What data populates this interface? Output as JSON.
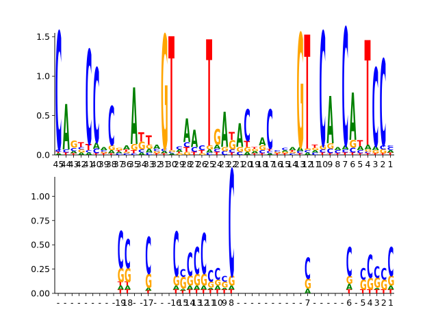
{
  "colors": {
    "A": "#008000",
    "C": "#0000ff",
    "G": "#ffa500",
    "T": "#ff0000"
  },
  "chart_data": [
    {
      "type": "sequence-logo",
      "title": "",
      "xlabel": "",
      "ylabel": "",
      "ylim": [
        0,
        1.55
      ],
      "yticks": [
        "0.0",
        "0.5",
        "1.0",
        "1.5"
      ],
      "ytick_values": [
        0,
        0.5,
        1.0,
        1.5
      ],
      "positions": [
        "45",
        "44",
        "43",
        "42",
        "41",
        "40",
        "39",
        "38",
        "37",
        "36",
        "35",
        "34",
        "33",
        "32",
        "31",
        "30",
        "29",
        "28",
        "27",
        "26",
        "25",
        "24",
        "23",
        "22",
        "21",
        "20",
        "19",
        "18",
        "17",
        "16",
        "15",
        "14",
        "13",
        "12",
        "11",
        "10",
        "9",
        "8",
        "7",
        "6",
        "5",
        "4",
        "3",
        "2",
        "1"
      ],
      "columns": [
        [
          [
            "A",
            0.02
          ],
          [
            "T",
            0.02
          ],
          [
            "C",
            0.03
          ],
          [
            "C",
            1.5
          ]
        ],
        [
          [
            "T",
            0.03
          ],
          [
            "C",
            0.04
          ],
          [
            "A",
            0.58
          ]
        ],
        [
          [
            "T",
            0.02
          ],
          [
            "A",
            0.03
          ],
          [
            "C",
            0.04
          ],
          [
            "G",
            0.09
          ]
        ],
        [
          [
            "A",
            0.03
          ],
          [
            "G",
            0.04
          ],
          [
            "C",
            0.03
          ],
          [
            "T",
            0.06
          ]
        ],
        [
          [
            "A",
            0.03
          ],
          [
            "C",
            0.03
          ],
          [
            "T",
            0.08
          ],
          [
            "C",
            1.2
          ]
        ],
        [
          [
            "T",
            0.02
          ],
          [
            "C",
            0.06
          ],
          [
            "A",
            0.08
          ],
          [
            "C",
            0.95
          ]
        ],
        [
          [
            "T",
            0.02
          ],
          [
            "G",
            0.02
          ],
          [
            "C",
            0.02
          ],
          [
            "A",
            0.04
          ]
        ],
        [
          [
            "T",
            0.02
          ],
          [
            "A",
            0.04
          ],
          [
            "G",
            0.06
          ],
          [
            "C",
            0.5
          ]
        ],
        [
          [
            "C",
            0.02
          ],
          [
            "A",
            0.02
          ],
          [
            "T",
            0.02
          ],
          [
            "G",
            0.03
          ]
        ],
        [
          [
            "C",
            0.02
          ],
          [
            "G",
            0.02
          ],
          [
            "T",
            0.03
          ],
          [
            "A",
            0.05
          ]
        ],
        [
          [
            "C",
            0.02
          ],
          [
            "T",
            0.04
          ],
          [
            "G",
            0.08
          ],
          [
            "A",
            0.72
          ]
        ],
        [
          [
            "A",
            0.03
          ],
          [
            "C",
            0.04
          ],
          [
            "G",
            0.1
          ],
          [
            "T",
            0.12
          ]
        ],
        [
          [
            "C",
            0.03
          ],
          [
            "A",
            0.05
          ],
          [
            "G",
            0.05
          ],
          [
            "T",
            0.12
          ]
        ],
        [
          [
            "T",
            0.02
          ],
          [
            "G",
            0.03
          ],
          [
            "C",
            0.03
          ],
          [
            "A",
            0.05
          ]
        ],
        [
          [
            "T",
            0.02
          ],
          [
            "A",
            0.03
          ],
          [
            "C",
            0.03
          ],
          [
            "G",
            1.45
          ]
        ],
        [
          [
            "A",
            0.02
          ],
          [
            "C",
            0.02
          ],
          [
            "G",
            0.02
          ],
          [
            "T",
            1.45
          ]
        ],
        [
          [
            "G",
            0.02
          ],
          [
            "T",
            0.02
          ],
          [
            "A",
            0.03
          ],
          [
            "C",
            0.04
          ]
        ],
        [
          [
            "G",
            0.04
          ],
          [
            "T",
            0.06
          ],
          [
            "C",
            0.06
          ],
          [
            "A",
            0.3
          ]
        ],
        [
          [
            "T",
            0.04
          ],
          [
            "C",
            0.06
          ],
          [
            "A",
            0.22
          ]
        ],
        [
          [
            "G",
            0.02
          ],
          [
            "T",
            0.04
          ],
          [
            "C",
            0.06
          ]
        ],
        [
          [
            "C",
            0.03
          ],
          [
            "A",
            0.04
          ],
          [
            "G",
            0.05
          ],
          [
            "T",
            1.35
          ]
        ],
        [
          [
            "T",
            0.04
          ],
          [
            "C",
            0.04
          ],
          [
            "A",
            0.05
          ],
          [
            "G",
            0.2
          ]
        ],
        [
          [
            "C",
            0.05
          ],
          [
            "G",
            0.05
          ],
          [
            "A",
            0.45
          ]
        ],
        [
          [
            "T",
            0.03
          ],
          [
            "C",
            0.04
          ],
          [
            "G",
            0.12
          ],
          [
            "T",
            0.1
          ]
        ],
        [
          [
            "C",
            0.04
          ],
          [
            "G",
            0.06
          ],
          [
            "A",
            0.3
          ]
        ],
        [
          [
            "A",
            0.04
          ],
          [
            "G",
            0.06
          ],
          [
            "T",
            0.08
          ],
          [
            "C",
            0.4
          ]
        ],
        [
          [
            "T",
            0.02
          ],
          [
            "A",
            0.03
          ],
          [
            "G",
            0.03
          ],
          [
            "T",
            0.02
          ]
        ],
        [
          [
            "T",
            0.02
          ],
          [
            "C",
            0.04
          ],
          [
            "G",
            0.06
          ],
          [
            "A",
            0.1
          ]
        ],
        [
          [
            "A",
            0.02
          ],
          [
            "C",
            0.03
          ],
          [
            "T",
            0.03
          ],
          [
            "C",
            0.5
          ]
        ],
        [
          [
            "T",
            0.02
          ],
          [
            "G",
            0.02
          ],
          [
            "C",
            0.02
          ]
        ],
        [
          [
            "T",
            0.02
          ],
          [
            "G",
            0.02
          ],
          [
            "A",
            0.02
          ],
          [
            "C",
            0.03
          ]
        ],
        [
          [
            "C",
            0.02
          ],
          [
            "G",
            0.02
          ],
          [
            "T",
            0.02
          ],
          [
            "A",
            0.04
          ]
        ],
        [
          [
            "T",
            0.02
          ],
          [
            "C",
            0.03
          ],
          [
            "A",
            0.05
          ],
          [
            "G",
            1.45
          ]
        ],
        [
          [
            "A",
            0.03
          ],
          [
            "C",
            0.03
          ],
          [
            "G",
            0.02
          ],
          [
            "T",
            1.45
          ]
        ],
        [
          [
            "C",
            0.03
          ],
          [
            "A",
            0.03
          ],
          [
            "G",
            0.03
          ],
          [
            "T",
            0.04
          ]
        ],
        [
          [
            "T",
            0.03
          ],
          [
            "C",
            0.04
          ],
          [
            "G",
            0.05
          ],
          [
            "C",
            1.45
          ]
        ],
        [
          [
            "T",
            0.02
          ],
          [
            "C",
            0.06
          ],
          [
            "G",
            0.07
          ],
          [
            "A",
            0.6
          ]
        ],
        [
          [
            "T",
            0.02
          ],
          [
            "C",
            0.04
          ],
          [
            "A",
            0.04
          ]
        ],
        [
          [
            "T",
            0.03
          ],
          [
            "C",
            0.04
          ],
          [
            "A",
            0.05
          ],
          [
            "C",
            1.5
          ]
        ],
        [
          [
            "T",
            0.03
          ],
          [
            "C",
            0.06
          ],
          [
            "G",
            0.1
          ],
          [
            "A",
            0.6
          ]
        ],
        [
          [
            "T",
            0.02
          ],
          [
            "C",
            0.04
          ],
          [
            "A",
            0.05
          ],
          [
            "T",
            0.08
          ]
        ],
        [
          [
            "T",
            0.02
          ],
          [
            "C",
            0.02
          ],
          [
            "G",
            0.03
          ],
          [
            "A",
            0.06
          ],
          [
            "T",
            1.33
          ]
        ],
        [
          [
            "T",
            0.02
          ],
          [
            "G",
            0.04
          ],
          [
            "A",
            0.05
          ],
          [
            "C",
            1.0
          ]
        ],
        [
          [
            "T",
            0.02
          ],
          [
            "G",
            0.05
          ],
          [
            "C",
            0.05
          ],
          [
            "C",
            1.1
          ]
        ],
        [
          [
            "T",
            0.03
          ],
          [
            "A",
            0.03
          ],
          [
            "C",
            0.04
          ],
          [
            "C",
            0.02
          ]
        ]
      ]
    },
    {
      "type": "sequence-logo",
      "title": "",
      "xlabel": "",
      "ylabel": "",
      "ylim": [
        0,
        1.2
      ],
      "yticks": [
        "0.00",
        "0.25",
        "0.50",
        "0.75",
        "1.00"
      ],
      "ytick_values": [
        0,
        0.25,
        0.5,
        0.75,
        1.0
      ],
      "positions": [
        "-",
        "-",
        "-",
        "-",
        "-",
        "-",
        "-",
        "-",
        "-",
        "19",
        "18",
        "-",
        "-",
        "17",
        "-",
        "-",
        "-",
        "16",
        "15",
        "14",
        "13",
        "12",
        "11",
        "10",
        "9",
        "8",
        "-",
        "-",
        "-",
        "-",
        "-",
        "-",
        "-",
        "-",
        "-",
        "-",
        "7",
        "-",
        "-",
        "-",
        "-",
        "-",
        "6",
        "-",
        "5",
        "4",
        "3",
        "2",
        "1"
      ],
      "columns": [
        [],
        [],
        [],
        [],
        [],
        [],
        [],
        [],
        [],
        [
          [
            "T",
            0.04
          ],
          [
            "A",
            0.04
          ],
          [
            "T",
            0.04
          ],
          [
            "G",
            0.14
          ],
          [
            "C",
            0.38
          ]
        ],
        [
          [
            "T",
            0.04
          ],
          [
            "A",
            0.04
          ],
          [
            "T",
            0.04
          ],
          [
            "G",
            0.14
          ],
          [
            "C",
            0.3
          ]
        ],
        [],
        [],
        [
          [
            "T",
            0.03
          ],
          [
            "A",
            0.03
          ],
          [
            "G",
            0.14
          ],
          [
            "C",
            0.38
          ]
        ],
        [],
        [],
        [],
        [
          [
            "T",
            0.04
          ],
          [
            "A",
            0.04
          ],
          [
            "G",
            0.1
          ],
          [
            "C",
            0.46
          ]
        ],
        [
          [
            "T",
            0.03
          ],
          [
            "A",
            0.02
          ],
          [
            "G",
            0.12
          ],
          [
            "C",
            0.08
          ]
        ],
        [
          [
            "T",
            0.04
          ],
          [
            "A",
            0.04
          ],
          [
            "G",
            0.1
          ],
          [
            "C",
            0.24
          ]
        ],
        [
          [
            "T",
            0.04
          ],
          [
            "A",
            0.04
          ],
          [
            "G",
            0.12
          ],
          [
            "C",
            0.28
          ]
        ],
        [
          [
            "T",
            0.04
          ],
          [
            "A",
            0.04
          ],
          [
            "G",
            0.12
          ],
          [
            "C",
            0.42
          ]
        ],
        [
          [
            "T",
            0.04
          ],
          [
            "A",
            0.02
          ],
          [
            "G",
            0.06
          ],
          [
            "C",
            0.12
          ]
        ],
        [
          [
            "T",
            0.04
          ],
          [
            "A",
            0.04
          ],
          [
            "G",
            0.06
          ],
          [
            "C",
            0.12
          ]
        ],
        [
          [
            "T",
            0.04
          ],
          [
            "A",
            0.02
          ],
          [
            "G",
            0.06
          ],
          [
            "C",
            0.06
          ]
        ],
        [
          [
            "T",
            0.04
          ],
          [
            "A",
            0.04
          ],
          [
            "G",
            0.1
          ],
          [
            "C",
            1.1
          ]
        ],
        [],
        [],
        [],
        [],
        [],
        [],
        [],
        [],
        [],
        [],
        [
          [
            "A",
            0.05
          ],
          [
            "G",
            0.1
          ],
          [
            "C",
            0.22
          ]
        ],
        [],
        [],
        [],
        [],
        [],
        [
          [
            "T",
            0.04
          ],
          [
            "A",
            0.06
          ],
          [
            "G",
            0.08
          ],
          [
            "C",
            0.3
          ]
        ],
        [],
        [
          [
            "T",
            0.04
          ],
          [
            "G",
            0.1
          ],
          [
            "C",
            0.12
          ]
        ],
        [
          [
            "T",
            0.04
          ],
          [
            "G",
            0.12
          ],
          [
            "C",
            0.24
          ]
        ],
        [
          [
            "T",
            0.04
          ],
          [
            "A",
            0.02
          ],
          [
            "G",
            0.1
          ],
          [
            "C",
            0.12
          ]
        ],
        [
          [
            "T",
            0.04
          ],
          [
            "G",
            0.1
          ],
          [
            "C",
            0.12
          ]
        ],
        [
          [
            "T",
            0.04
          ],
          [
            "A",
            0.04
          ],
          [
            "G",
            0.1
          ],
          [
            "C",
            0.3
          ]
        ]
      ]
    }
  ]
}
